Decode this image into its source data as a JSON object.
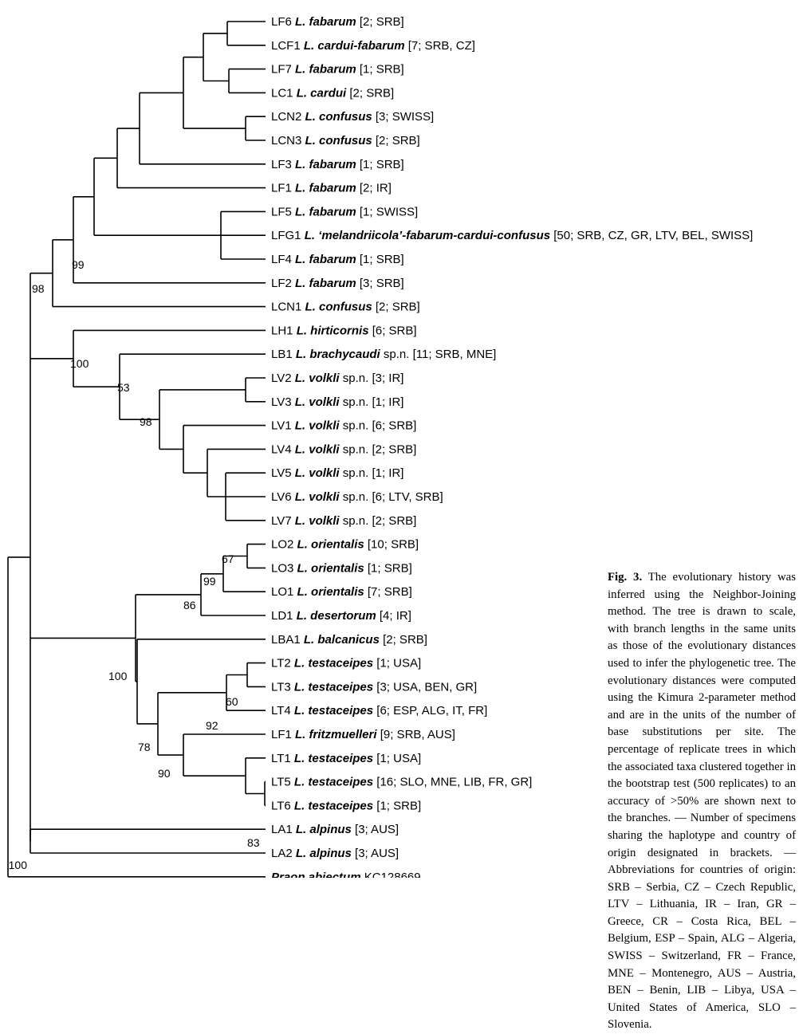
{
  "figure": {
    "caption_label": "Fig. 3.",
    "caption_text": " The evolutionary history was inferred using the Neighbor-Joining method. The tree is drawn to scale, with branch lengths in the same units as those of the evolutionary distances used to infer the phylogenetic tree. The evolutionary distances were computed using the Kimura 2-parameter method and are in the units of the number of base substitutions per site. The percentage of replicate trees in which the associated taxa clustered together in the bootstrap test (500 replicates) to an accuracy of >50% are shown next to the branches. — Number of specimens sharing the haplotype and country of origin designated in brackets. — Abbreviations for countries of origin: SRB – Serbia, CZ – Czech Republic, LTV – Lithuania, IR – Iran, GR – Greece, CR – Costa Rica, BEL – Belgium, ESP – Spain, ALG – Algeria, SWISS – Switzerland, FR – France, MNE – Montenegro, AUS – Austria, BEN – Benin, LIB – Libya, USA – United States of America, SLO – Slovenia."
  },
  "tree": {
    "taxa": [
      {
        "code": "LF6",
        "species": "L. fabarum",
        "note": "",
        "info": "[2; SRB]"
      },
      {
        "code": "LCF1",
        "species": "L. cardui-fabarum",
        "note": "",
        "info": "[7; SRB, CZ]"
      },
      {
        "code": "LF7",
        "species": "L. fabarum",
        "note": "",
        "info": "[1; SRB]"
      },
      {
        "code": "LC1",
        "species": "L. cardui",
        "note": "",
        "info": "[2; SRB]"
      },
      {
        "code": "LCN2",
        "species": "L. confusus",
        "note": "",
        "info": "[3; SWISS]"
      },
      {
        "code": "LCN3",
        "species": "L. confusus",
        "note": "",
        "info": "[2; SRB]"
      },
      {
        "code": "LF3",
        "species": "L. fabarum",
        "note": "",
        "info": "[1; SRB]"
      },
      {
        "code": "LF1",
        "species": "L. fabarum",
        "note": "",
        "info": "[2; IR]"
      },
      {
        "code": "LF5",
        "species": "L. fabarum",
        "note": "",
        "info": "[1; SWISS]"
      },
      {
        "code": "LFG1",
        "species": "L. ‘melandriicola’-fabarum-cardui-confusus",
        "note": "",
        "info": "[50; SRB, CZ, GR, LTV, BEL, SWISS]"
      },
      {
        "code": "LF4",
        "species": "L. fabarum",
        "note": "",
        "info": "[1; SRB]"
      },
      {
        "code": "LF2",
        "species": "L. fabarum",
        "note": "",
        "info": "[3; SRB]"
      },
      {
        "code": "LCN1",
        "species": "L. confusus",
        "note": "",
        "info": "[2; SRB]"
      },
      {
        "code": "LH1",
        "species": "L. hirticornis",
        "note": "",
        "info": "[6; SRB]"
      },
      {
        "code": "LB1",
        "species": "L. brachycaudi",
        "note": "sp.n.",
        "info": "[11; SRB, MNE]"
      },
      {
        "code": "LV2",
        "species": "L. volkli",
        "note": "sp.n.",
        "info": "[3; IR]"
      },
      {
        "code": "LV3",
        "species": "L. volkli",
        "note": "sp.n.",
        "info": "[1; IR]"
      },
      {
        "code": "LV1",
        "species": "L. volkli",
        "note": "sp.n.",
        "info": "[6; SRB]"
      },
      {
        "code": "LV4",
        "species": "L. volkli",
        "note": "sp.n.",
        "info": "[2; SRB]"
      },
      {
        "code": "LV5",
        "species": "L. volkli",
        "note": "sp.n.",
        "info": "[1; IR]"
      },
      {
        "code": "LV6",
        "species": "L. volkli",
        "note": "sp.n.",
        "info": "[6; LTV, SRB]"
      },
      {
        "code": "LV7",
        "species": "L. volkli",
        "note": "sp.n.",
        "info": "[2; SRB]"
      },
      {
        "code": "LO2",
        "species": "L. orientalis",
        "note": "",
        "info": "[10; SRB]"
      },
      {
        "code": "LO3",
        "species": "L. orientalis",
        "note": "",
        "info": "[1; SRB]"
      },
      {
        "code": "LO1",
        "species": "L. orientalis",
        "note": "",
        "info": "[7; SRB]"
      },
      {
        "code": "LD1",
        "species": "L. desertorum",
        "note": "",
        "info": "[4; IR]"
      },
      {
        "code": "LBA1",
        "species": "L. balcanicus",
        "note": "",
        "info": "[2; SRB]"
      },
      {
        "code": "LT2",
        "species": "L. testaceipes",
        "note": "",
        "info": "[1; USA]"
      },
      {
        "code": "LT3",
        "species": "L. testaceipes",
        "note": "",
        "info": "[3; USA, BEN, GR]"
      },
      {
        "code": "LT4",
        "species": "L. testaceipes",
        "note": "",
        "info": "[6; ESP, ALG, IT, FR]"
      },
      {
        "code": "LF1",
        "species": "L. fritzmuelleri",
        "note": "",
        "info": "[9; SRB, AUS]"
      },
      {
        "code": "LT1",
        "species": "L. testaceipes",
        "note": "",
        "info": "[1; USA]"
      },
      {
        "code": "LT5",
        "species": "L. testaceipes",
        "note": "",
        "info": "[16; SLO, MNE, LIB, FR, GR]"
      },
      {
        "code": "LT6",
        "species": "L. testaceipes",
        "note": "",
        "info": "[1; SRB]"
      },
      {
        "code": "LA1",
        "species": "L. alpinus",
        "note": "",
        "info": "[3; AUS]"
      },
      {
        "code": "LA2",
        "species": "L. alpinus",
        "note": "",
        "info": "[3; AUS]"
      },
      {
        "code": "",
        "species": "Praon abjectum",
        "note": "",
        "info": "KC128669"
      }
    ],
    "bootstrap_values": [
      "99",
      "98",
      "100",
      "53",
      "98",
      "67",
      "99",
      "86",
      "100",
      "60",
      "92",
      "78",
      "90",
      "83",
      "100"
    ]
  }
}
